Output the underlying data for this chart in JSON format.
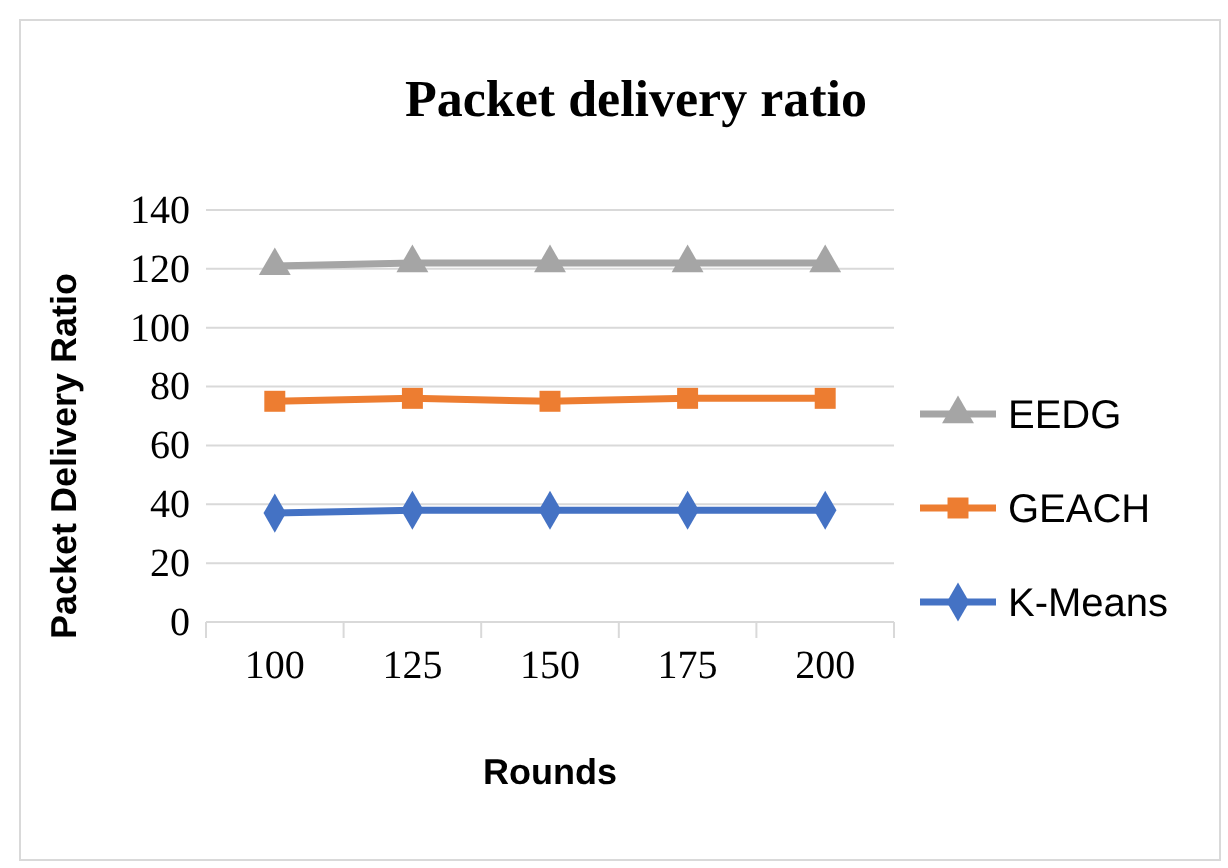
{
  "chart_data": {
    "type": "line",
    "title": "Packet delivery ratio",
    "xlabel": "Rounds",
    "ylabel": "Packet Delivery Ratio",
    "categories": [
      "100",
      "125",
      "150",
      "175",
      "200"
    ],
    "series": [
      {
        "name": "EEDG",
        "color": "#a5a5a5",
        "marker": "triangle",
        "values": [
          121,
          122,
          122,
          122,
          122
        ]
      },
      {
        "name": "GEACH",
        "color": "#ed7d31",
        "marker": "square",
        "values": [
          75,
          76,
          75,
          76,
          76
        ]
      },
      {
        "name": "K-Means",
        "color": "#4472c4",
        "marker": "diamond",
        "values": [
          37,
          38,
          38,
          38,
          38
        ]
      }
    ],
    "ylim": [
      0,
      140
    ],
    "yticks": [
      0,
      20,
      40,
      60,
      80,
      100,
      120,
      140
    ],
    "grid": "y",
    "legend": "right"
  }
}
